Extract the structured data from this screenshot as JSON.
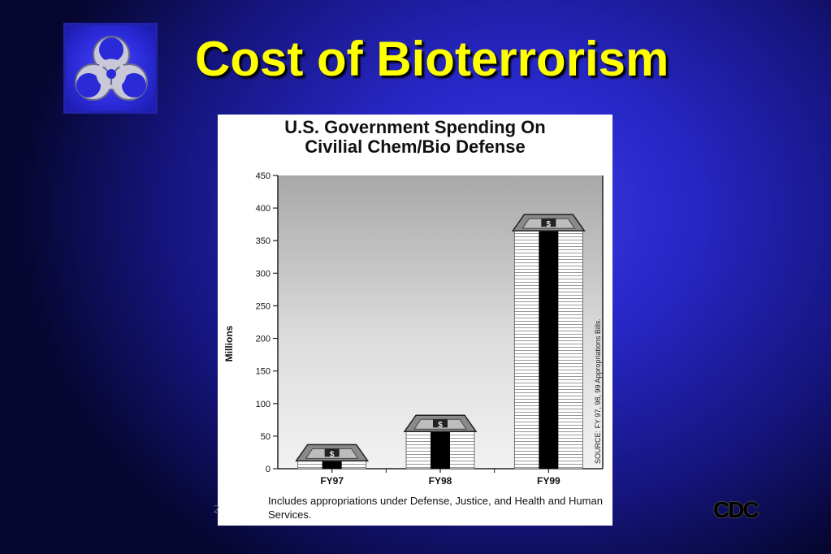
{
  "slide": {
    "title": "Cost of Bioterrorism",
    "page_number": "2",
    "corner_logo_text": "CDC",
    "top_left_icon": "biohazard-icon"
  },
  "chart_data": {
    "type": "bar",
    "title_lines": [
      "U.S. Government Spending On",
      "Civilial Chem/Bio Defense"
    ],
    "categories": [
      "FY97",
      "FY98",
      "FY99"
    ],
    "values": [
      37,
      82,
      390
    ],
    "ylabel": "Millions",
    "xlabel": "",
    "ylim": [
      0,
      450
    ],
    "yticks": [
      0,
      50,
      100,
      150,
      200,
      250,
      300,
      350,
      400,
      450
    ],
    "ytick_labels": [
      "0",
      "50",
      "100",
      "150",
      "200",
      "250",
      "300",
      "350",
      "400",
      "450"
    ],
    "source_note": "SOURCE: FY 97, 98, 99 Appropriations Bills.",
    "footnote": "Includes appropriations under Defense, Justice, and Health and Human Services.",
    "bar_marker": "$",
    "grid": false,
    "legend": "none"
  },
  "colors": {
    "title": "#ffff00",
    "background": "#2626c4",
    "bar_fill": "#ffffff",
    "bar_stripe": "#999999",
    "bar_core": "#000000"
  }
}
